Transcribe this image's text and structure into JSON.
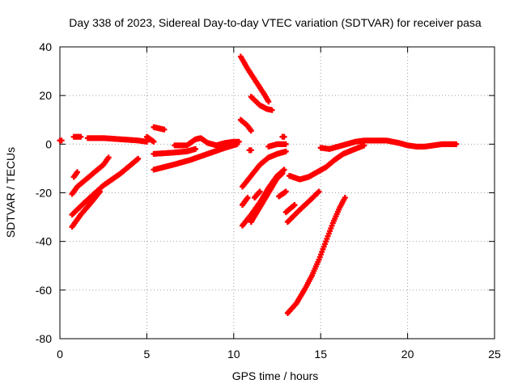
{
  "chart_data": {
    "type": "scatter",
    "title": "Day 338 of 2023, Sidereal Day-to-day VTEC variation (SDTVAR) for receiver pasa",
    "xlabel": "GPS time / hours",
    "ylabel": "SDTVAR / TECUs",
    "xlim": [
      0,
      25
    ],
    "ylim": [
      -80,
      40
    ],
    "x_ticks": [
      0,
      5,
      10,
      15,
      20,
      25
    ],
    "y_ticks": [
      -80,
      -60,
      -40,
      -20,
      0,
      20,
      40
    ],
    "x_tick_labels": [
      "0",
      "5",
      "10",
      "15",
      "20",
      "25"
    ],
    "y_tick_labels": [
      "-80",
      "-60",
      "-40",
      "-20",
      "0",
      "20",
      "40"
    ],
    "grid": true,
    "grid_style": "dotted",
    "marker": "plus",
    "point_color": "#ff0000",
    "series": [
      {
        "segments": [
          {
            "points": [
              [
                0.0,
                1.5
              ],
              [
                0.1,
                1.5
              ]
            ]
          },
          {
            "points": [
              [
                0.8,
                3.0
              ],
              [
                1.2,
                3.0
              ]
            ]
          },
          {
            "points": [
              [
                1.6,
                2.5
              ],
              [
                2.5,
                2.5
              ],
              [
                3.5,
                2.0
              ],
              [
                4.5,
                1.5
              ],
              [
                5.0,
                1.0
              ]
            ]
          },
          {
            "points": [
              [
                5.0,
                3.0
              ],
              [
                5.4,
                1.0
              ]
            ]
          },
          {
            "points": [
              [
                5.4,
                7.0
              ],
              [
                6.0,
                6.0
              ]
            ]
          },
          {
            "points": [
              [
                5.4,
                -4.0
              ],
              [
                6.5,
                -3.5
              ],
              [
                7.3,
                -3.0
              ],
              [
                7.8,
                -2.0
              ]
            ]
          },
          {
            "points": [
              [
                6.6,
                -0.5
              ],
              [
                7.2,
                -0.5
              ]
            ]
          },
          {
            "points": [
              [
                7.3,
                -0.5
              ],
              [
                7.8,
                2.0
              ],
              [
                8.1,
                2.5
              ],
              [
                8.5,
                0.5
              ],
              [
                9.0,
                -0.5
              ],
              [
                9.5,
                0.5
              ],
              [
                10.0,
                1.0
              ],
              [
                10.3,
                1.0
              ]
            ]
          },
          {
            "points": [
              [
                5.4,
                -10.5
              ],
              [
                6.5,
                -8.5
              ],
              [
                7.5,
                -6.5
              ],
              [
                8.5,
                -4.0
              ],
              [
                9.5,
                -1.5
              ],
              [
                10.2,
                0.0
              ]
            ]
          },
          {
            "points": [
              [
                0.8,
                -13.5
              ],
              [
                1.0,
                -11.5
              ]
            ]
          },
          {
            "points": [
              [
                0.7,
                -20.5
              ],
              [
                1.0,
                -17.5
              ],
              [
                1.5,
                -14.5
              ],
              [
                2.0,
                -11.5
              ],
              [
                2.5,
                -8.5
              ],
              [
                2.8,
                -5.5
              ]
            ]
          },
          {
            "points": [
              [
                0.7,
                -29.0
              ],
              [
                1.2,
                -25.5
              ],
              [
                1.8,
                -21.5
              ],
              [
                2.5,
                -17.0
              ],
              [
                3.0,
                -14.5
              ],
              [
                3.5,
                -12.0
              ],
              [
                4.0,
                -9.0
              ],
              [
                4.5,
                -6.0
              ]
            ]
          },
          {
            "points": [
              [
                0.7,
                -34.0
              ],
              [
                1.2,
                -29.0
              ],
              [
                1.8,
                -24.0
              ],
              [
                2.3,
                -19.5
              ]
            ]
          },
          {
            "points": [
              [
                10.4,
                36.0
              ],
              [
                10.8,
                31.0
              ],
              [
                11.3,
                25.5
              ],
              [
                11.8,
                20.0
              ],
              [
                12.0,
                17.5
              ]
            ]
          },
          {
            "points": [
              [
                11.0,
                19.5
              ],
              [
                11.5,
                16.0
              ],
              [
                11.9,
                14.5
              ],
              [
                12.2,
                14.0
              ]
            ]
          },
          {
            "points": [
              [
                10.4,
                10.0
              ],
              [
                10.8,
                7.5
              ],
              [
                11.0,
                5.5
              ]
            ]
          },
          {
            "points": [
              [
                10.9,
                -2.5
              ],
              [
                11.0,
                -2.5
              ]
            ]
          },
          {
            "points": [
              [
                10.5,
                -17.5
              ],
              [
                11.0,
                -13.0
              ],
              [
                11.5,
                -8.5
              ],
              [
                12.0,
                -5.5
              ],
              [
                12.5,
                -4.0
              ],
              [
                13.0,
                -3.0
              ]
            ]
          },
          {
            "points": [
              [
                12.0,
                -1.0
              ],
              [
                12.5,
                0.0
              ],
              [
                13.0,
                0.0
              ]
            ]
          },
          {
            "points": [
              [
                12.8,
                3.0
              ],
              [
                12.9,
                3.0
              ]
            ]
          },
          {
            "points": [
              [
                10.5,
                -33.5
              ],
              [
                11.0,
                -29.0
              ],
              [
                11.5,
                -24.0
              ],
              [
                12.0,
                -18.0
              ],
              [
                12.5,
                -13.0
              ],
              [
                12.9,
                -10.5
              ]
            ]
          },
          {
            "points": [
              [
                11.0,
                -32.0
              ],
              [
                11.5,
                -26.0
              ],
              [
                12.0,
                -20.0
              ],
              [
                12.5,
                -14.0
              ],
              [
                12.8,
                -12.0
              ]
            ]
          },
          {
            "points": [
              [
                10.5,
                -25.0
              ],
              [
                10.8,
                -22.0
              ]
            ]
          },
          {
            "points": [
              [
                11.2,
                -22.0
              ],
              [
                11.5,
                -19.5
              ]
            ]
          },
          {
            "points": [
              [
                12.6,
                -21.5
              ],
              [
                13.0,
                -19.5
              ]
            ]
          },
          {
            "points": [
              [
                13.2,
                -13.0
              ],
              [
                13.8,
                -14.5
              ],
              [
                14.3,
                -13.5
              ],
              [
                14.8,
                -11.5
              ],
              [
                15.3,
                -9.5
              ],
              [
                15.8,
                -6.5
              ],
              [
                16.3,
                -4.0
              ],
              [
                16.8,
                -2.5
              ],
              [
                17.5,
                -0.5
              ]
            ]
          },
          {
            "points": [
              [
                13.0,
                -28.0
              ],
              [
                13.5,
                -25.0
              ]
            ]
          },
          {
            "points": [
              [
                13.1,
                -32.0
              ],
              [
                13.8,
                -27.0
              ],
              [
                14.4,
                -23.0
              ],
              [
                14.9,
                -19.5
              ]
            ]
          },
          {
            "points": [
              [
                13.1,
                -69.5
              ],
              [
                13.6,
                -65.5
              ],
              [
                14.1,
                -59.5
              ],
              [
                14.5,
                -54.0
              ],
              [
                14.9,
                -47.5
              ],
              [
                15.3,
                -40.0
              ],
              [
                15.7,
                -32.5
              ],
              [
                16.1,
                -26.0
              ],
              [
                16.4,
                -22.0
              ]
            ]
          },
          {
            "points": [
              [
                15.0,
                -1.5
              ],
              [
                15.5,
                -2.0
              ],
              [
                16.0,
                -1.0
              ],
              [
                16.5,
                0.0
              ],
              [
                17.0,
                1.0
              ],
              [
                17.5,
                1.5
              ],
              [
                18.0,
                1.5
              ],
              [
                18.8,
                1.5
              ],
              [
                19.5,
                0.5
              ],
              [
                20.0,
                -0.5
              ],
              [
                20.5,
                -1.0
              ],
              [
                21.0,
                -1.0
              ],
              [
                21.5,
                -0.5
              ],
              [
                22.0,
                0.0
              ],
              [
                22.5,
                0.0
              ],
              [
                22.8,
                0.0
              ]
            ]
          }
        ]
      }
    ]
  }
}
